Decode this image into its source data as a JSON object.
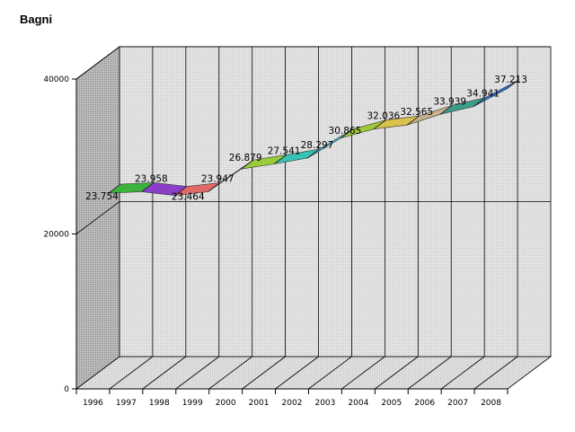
{
  "chart_data": {
    "type": "area",
    "title": "Bagni",
    "xlabel": "",
    "ylabel": "",
    "categories": [
      "1996",
      "1997",
      "1998",
      "1999",
      "2000",
      "2001",
      "2002",
      "2003",
      "2004",
      "2005",
      "2006",
      "2007",
      "2008"
    ],
    "values": [
      23754,
      23958,
      23464,
      23947,
      26879,
      27541,
      28297,
      30865,
      32036,
      32565,
      33939,
      34941,
      37213
    ],
    "data_labels": [
      "23.754",
      "23.958",
      "23.464",
      "23.947",
      "26.879",
      "27.541",
      "28.297",
      "30.865",
      "32.036",
      "32.565",
      "33.939",
      "34.941",
      "37.213"
    ],
    "ylim": [
      0,
      40000
    ],
    "yticks": [
      0,
      20000,
      40000
    ],
    "ytick_labels": [
      "0",
      "20000",
      "40000"
    ],
    "grid": true,
    "legend": "none",
    "style": "3d",
    "segment_colors": [
      "#3cb43c",
      "#8b3fc8",
      "#e06a6a",
      "#5a7fd0",
      "#9acb3a",
      "#36c2b8",
      "#3cc6d8",
      "#9fc83a",
      "#d8c24a",
      "#c8b08a",
      "#3aa08a",
      "#2a6fd0",
      "#b89ae0"
    ]
  }
}
